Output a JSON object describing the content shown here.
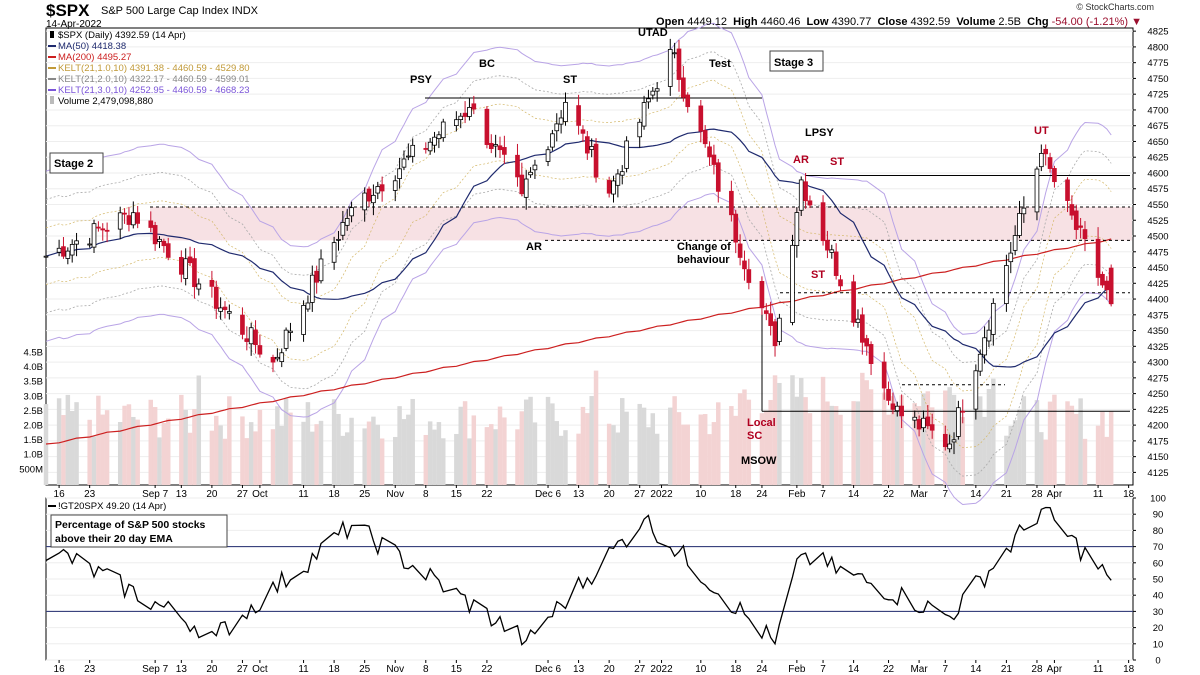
{
  "header": {
    "symbol": "$SPX",
    "name": "S&P 500 Large Cap Index",
    "exchange": "INDX",
    "date": "14-Apr-2022",
    "open_label": "Open",
    "open": "4449.12",
    "high_label": "High",
    "high": "4460.46",
    "low_label": "Low",
    "low": "4390.77",
    "close_label": "Close",
    "close": "4392.59",
    "volume_label": "Volume",
    "volume": "2.5B",
    "chg_label": "Chg",
    "chg": "-54.00 (-1.21%)",
    "brand": "© StockCharts.com"
  },
  "colors": {
    "up_candle": "#000000",
    "down_candle": "#c8102e",
    "ma50": "#1f2a6e",
    "ma200": "#cc2020",
    "kelt1": "#d4b86a",
    "kelt2": "#aaaaaa",
    "kelt3": "#b9a4e6",
    "band_fill": "#f7e1e4",
    "volume_up": "#d9d9d9",
    "volume_down": "#f3d3d3",
    "indicator_line": "#000000"
  },
  "legend": [
    {
      "text": "$SPX (Daily) 4392.59 (14 Apr)",
      "color": "#000000",
      "swatch": "candle"
    },
    {
      "text": "MA(50) 4418.38",
      "color": "#1f2a6e",
      "swatch": "line"
    },
    {
      "text": "MA(200) 4495.27",
      "color": "#cc2020",
      "swatch": "line"
    },
    {
      "text": "KELT(21,1.0,10) 4391.38 - 4460.59 - 4529.80",
      "color": "#c19a38",
      "swatch": "line"
    },
    {
      "text": "KELT(21,2.0,10) 4322.17 - 4460.59 - 4599.01",
      "color": "#888888",
      "swatch": "line"
    },
    {
      "text": "KELT(21,3.0,10) 4252.95 - 4460.59 - 4668.23",
      "color": "#7b55d8",
      "swatch": "line"
    },
    {
      "text": "Volume 2,479,098,880",
      "color": "#000000",
      "swatch": "bar"
    }
  ],
  "annotations": {
    "psy": "PSY",
    "bc": "BC",
    "st1": "ST",
    "utad": "UTAD",
    "test": "Test",
    "stage3": "Stage 3",
    "stage2": "Stage 2",
    "ar1": "AR",
    "change1": "Change of",
    "change2": "behaviour",
    "lpsy": "LPSY",
    "ar2": "AR",
    "st2": "ST",
    "st3": "ST",
    "ut": "UT",
    "local": "Local",
    "sc": "SC",
    "msow": "MSOW"
  },
  "indicator": {
    "legend": "!GT20SPX 49.20 (14 Apr)",
    "note1": "Percentage of S&P 500 stocks",
    "note2": "above their 20 day EMA"
  },
  "x_ticks": [
    "16",
    "23",
    "Sep 7",
    "13",
    "20",
    "27",
    "Oct",
    "11",
    "18",
    "25",
    "Nov",
    "8",
    "15",
    "22",
    "Dec 6",
    "13",
    "20",
    "27",
    "2022",
    "10",
    "18",
    "24",
    "Feb",
    "7",
    "14",
    "22",
    "Mar",
    "7",
    "14",
    "21",
    "28",
    "Apr",
    "11",
    "18"
  ],
  "volume_ticks": [
    "4.5B",
    "4.0B",
    "3.5B",
    "3.0B",
    "2.5B",
    "2.0B",
    "1.5B",
    "1.0B",
    "500M"
  ],
  "chart_data": [
    {
      "type": "candlestick",
      "title": "$SPX S&P 500 Large Cap Index (Daily)",
      "ylim": [
        4105,
        4830
      ],
      "y_ticks": [
        4125,
        4150,
        4175,
        4200,
        4225,
        4250,
        4275,
        4300,
        4325,
        4350,
        4375,
        4400,
        4425,
        4450,
        4475,
        4500,
        4525,
        4550,
        4575,
        4600,
        4625,
        4650,
        4675,
        4700,
        4725,
        4750,
        4775,
        4800,
        4825
      ],
      "key_closes": [
        {
          "date": "2021-08-13",
          "close": 4468
        },
        {
          "date": "2021-09-02",
          "close": 4537
        },
        {
          "date": "2021-10-04",
          "close": 4300
        },
        {
          "date": "2021-10-22",
          "close": 4545
        },
        {
          "date": "2021-11-18",
          "close": 4704
        },
        {
          "date": "2021-11-30",
          "close": 4567
        },
        {
          "date": "2021-12-10",
          "close": 4712
        },
        {
          "date": "2021-12-20",
          "close": 4568
        },
        {
          "date": "2022-01-03",
          "close": 4796
        },
        {
          "date": "2022-01-27",
          "close": 4326
        },
        {
          "date": "2022-02-02",
          "close": 4589
        },
        {
          "date": "2022-02-23",
          "close": 4225
        },
        {
          "date": "2022-03-08",
          "close": 4170
        },
        {
          "date": "2022-03-29",
          "close": 4631
        },
        {
          "date": "2022-04-14",
          "close": 4392.59
        }
      ],
      "ma50_last": 4418.38,
      "ma200_last": 4495.27,
      "resistance_levels": [
        4719,
        4596,
        4546,
        4493,
        4410,
        4264,
        4222
      ],
      "marked_zone": [
        4493,
        4546
      ]
    },
    {
      "type": "line",
      "name": "!GT20SPX",
      "ylim": [
        0,
        100
      ],
      "y_ticks": [
        0,
        10,
        20,
        30,
        40,
        50,
        60,
        70,
        80,
        90,
        100
      ],
      "reference_lines": [
        30,
        70
      ],
      "last_value": 49.2,
      "key_values": [
        {
          "date": "2021-08-16",
          "value": 66
        },
        {
          "date": "2021-09-21",
          "value": 15
        },
        {
          "date": "2021-10-22",
          "value": 83
        },
        {
          "date": "2021-12-01",
          "value": 12
        },
        {
          "date": "2021-12-28",
          "value": 87
        },
        {
          "date": "2022-01-27",
          "value": 10
        },
        {
          "date": "2022-02-02",
          "value": 65
        },
        {
          "date": "2022-03-08",
          "value": 27
        },
        {
          "date": "2022-03-29",
          "value": 93
        },
        {
          "date": "2022-04-14",
          "value": 49.2
        }
      ]
    }
  ]
}
